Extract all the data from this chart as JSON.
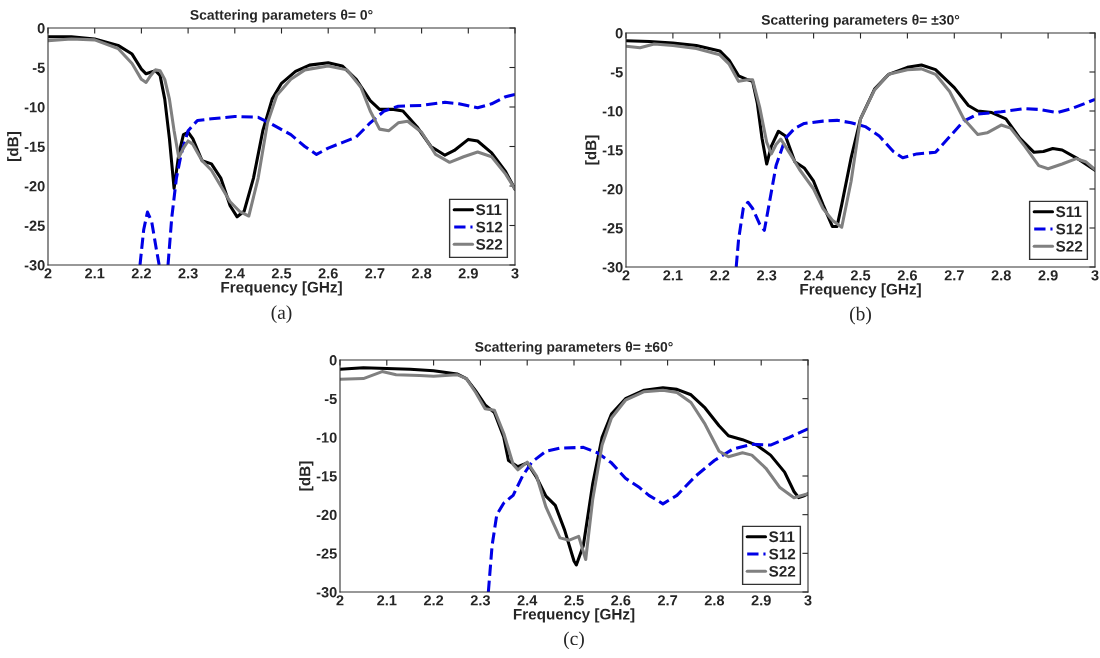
{
  "chart_data": [
    {
      "type": "line",
      "title": "Scattering parameters θ= 0°",
      "xlabel": "Frequency [GHz]",
      "ylabel": "[dB]",
      "annotations": [
        "(a)"
      ],
      "xlim": [
        2,
        3
      ],
      "ylim": [
        -30,
        0
      ],
      "xticks": [
        2,
        2.1,
        2.2,
        2.3,
        2.4,
        2.5,
        2.6,
        2.7,
        2.8,
        2.9,
        3
      ],
      "yticks": [
        -30,
        -25,
        -20,
        -15,
        -10,
        -5,
        0
      ],
      "grid": false,
      "legend": "bottom right",
      "series": [
        {
          "name": "S11",
          "color": "#000000",
          "line_style": "solid",
          "x": [
            2.0,
            2.05,
            2.1,
            2.15,
            2.18,
            2.2,
            2.21,
            2.23,
            2.24,
            2.25,
            2.26,
            2.27,
            2.28,
            2.29,
            2.3,
            2.31,
            2.33,
            2.35,
            2.37,
            2.39,
            2.405,
            2.42,
            2.44,
            2.46,
            2.48,
            2.5,
            2.53,
            2.56,
            2.6,
            2.63,
            2.66,
            2.69,
            2.71,
            2.74,
            2.76,
            2.79,
            2.82,
            2.85,
            2.87,
            2.9,
            2.92,
            2.95,
            2.98,
            3.0
          ],
          "values": [
            -1.1,
            -1.1,
            -1.4,
            -2.2,
            -3.3,
            -5.2,
            -5.8,
            -5.4,
            -6,
            -9,
            -14,
            -20.3,
            -16,
            -13.5,
            -13.2,
            -14,
            -16.8,
            -17.2,
            -19,
            -22.5,
            -23.9,
            -23.2,
            -19,
            -13,
            -9,
            -7,
            -5.5,
            -4.7,
            -4.4,
            -4.8,
            -6.5,
            -9.2,
            -10.3,
            -10.3,
            -10.5,
            -12.5,
            -15,
            -16.1,
            -15.5,
            -14.1,
            -14.3,
            -15.8,
            -18.2,
            -20.4
          ]
        },
        {
          "name": "S12",
          "color": "#0000e6",
          "line_style": "dashed",
          "x": [
            2.197,
            2.205,
            2.213,
            2.222,
            2.232,
            2.238,
            2.248,
            2.257,
            2.265,
            2.275,
            2.285,
            2.3,
            2.32,
            2.35,
            2.4,
            2.45,
            2.48,
            2.52,
            2.55,
            2.575,
            2.6,
            2.63,
            2.66,
            2.69,
            2.72,
            2.75,
            2.8,
            2.85,
            2.88,
            2.92,
            2.95,
            2.98,
            3.0
          ],
          "values": [
            -30,
            -25.5,
            -23.3,
            -24.5,
            -28,
            -30,
            null,
            -30,
            -24,
            -19,
            -16,
            -13,
            -11.7,
            -11.5,
            -11.2,
            -11.3,
            -12.2,
            -13.5,
            -15,
            -16,
            -15.2,
            -14.5,
            -13.8,
            -12,
            -10.5,
            -9.9,
            -9.8,
            -9.4,
            -9.6,
            -10.1,
            -9.6,
            -8.7,
            -8.4
          ]
        },
        {
          "name": "S22",
          "color": "#808080",
          "line_style": "solid",
          "x": [
            2.0,
            2.05,
            2.1,
            2.15,
            2.18,
            2.2,
            2.21,
            2.22,
            2.23,
            2.24,
            2.25,
            2.26,
            2.27,
            2.28,
            2.29,
            2.3,
            2.31,
            2.33,
            2.35,
            2.37,
            2.39,
            2.41,
            2.43,
            2.45,
            2.47,
            2.49,
            2.52,
            2.55,
            2.6,
            2.64,
            2.67,
            2.69,
            2.71,
            2.73,
            2.75,
            2.77,
            2.8,
            2.83,
            2.86,
            2.89,
            2.92,
            2.95,
            2.98,
            3.0
          ],
          "values": [
            -1.6,
            -1.4,
            -1.5,
            -2.6,
            -4.5,
            -6.5,
            -6.9,
            -6,
            -5.3,
            -5.4,
            -6.5,
            -9,
            -13,
            -16.4,
            -15.2,
            -14.3,
            -14.7,
            -16.8,
            -18,
            -20,
            -22,
            -23.2,
            -23.8,
            -19,
            -12,
            -8.5,
            -6.5,
            -5.3,
            -4.8,
            -5.3,
            -7.5,
            -10.5,
            -12.8,
            -13,
            -12,
            -11.8,
            -13.2,
            -16,
            -17,
            -16.3,
            -15.7,
            -16.3,
            -18.5,
            -20.4
          ]
        }
      ]
    },
    {
      "type": "line",
      "title": "Scattering parameters θ= ±30°",
      "xlabel": "Frequency [GHz]",
      "ylabel": "[dB]",
      "annotations": [
        "(b)"
      ],
      "xlim": [
        2,
        3
      ],
      "ylim": [
        -30,
        0
      ],
      "xticks": [
        2,
        2.1,
        2.2,
        2.3,
        2.4,
        2.5,
        2.6,
        2.7,
        2.8,
        2.9,
        3
      ],
      "yticks": [
        -30,
        -25,
        -20,
        -15,
        -10,
        -5,
        0
      ],
      "grid": false,
      "legend": "bottom right",
      "series": [
        {
          "name": "S11",
          "color": "#000000",
          "line_style": "solid",
          "x": [
            2.0,
            2.05,
            2.1,
            2.15,
            2.2,
            2.22,
            2.24,
            2.26,
            2.27,
            2.28,
            2.29,
            2.3,
            2.31,
            2.325,
            2.34,
            2.36,
            2.38,
            2.4,
            2.42,
            2.44,
            2.45,
            2.46,
            2.48,
            2.5,
            2.53,
            2.56,
            2.6,
            2.63,
            2.66,
            2.7,
            2.73,
            2.75,
            2.78,
            2.81,
            2.84,
            2.87,
            2.89,
            2.91,
            2.93,
            2.96,
            2.98,
            3.0
          ],
          "values": [
            -1,
            -1.1,
            -1.3,
            -1.6,
            -2.3,
            -3.5,
            -5.5,
            -6,
            -6.2,
            -9,
            -13.5,
            -16.8,
            -14.5,
            -12.6,
            -13.2,
            -16.5,
            -17.3,
            -19,
            -22,
            -24.8,
            -24.8,
            -22,
            -16,
            -11,
            -7.2,
            -5.3,
            -4.4,
            -4.1,
            -4.7,
            -7,
            -9.3,
            -10,
            -10.2,
            -11,
            -13.5,
            -15.3,
            -15.2,
            -14.8,
            -15,
            -16,
            -16.8,
            -17.6
          ]
        },
        {
          "name": "S12",
          "color": "#0000e6",
          "line_style": "dashed",
          "x": [
            2.235,
            2.24,
            2.25,
            2.26,
            2.27,
            2.285,
            2.295,
            2.305,
            2.32,
            2.34,
            2.36,
            2.38,
            2.42,
            2.45,
            2.48,
            2.51,
            2.54,
            2.57,
            2.59,
            2.62,
            2.66,
            2.69,
            2.72,
            2.75,
            2.8,
            2.85,
            2.88,
            2.92,
            2.95,
            2.98,
            3.0
          ],
          "values": [
            -30,
            -26.5,
            -22.5,
            -21.7,
            -22.5,
            -24.5,
            -25.3,
            -22,
            -17,
            -13.5,
            -12.2,
            -11.6,
            -11.3,
            -11.2,
            -11.5,
            -12,
            -13.2,
            -15.2,
            -16,
            -15.5,
            -15.3,
            -13.3,
            -11.3,
            -10.4,
            -10.1,
            -9.7,
            -9.8,
            -10.2,
            -9.7,
            -9,
            -8.5
          ]
        },
        {
          "name": "S22",
          "color": "#808080",
          "line_style": "solid",
          "x": [
            2.0,
            2.03,
            2.06,
            2.1,
            2.15,
            2.2,
            2.22,
            2.24,
            2.26,
            2.27,
            2.285,
            2.3,
            2.31,
            2.32,
            2.33,
            2.35,
            2.37,
            2.4,
            2.42,
            2.44,
            2.46,
            2.48,
            2.5,
            2.53,
            2.56,
            2.6,
            2.63,
            2.66,
            2.69,
            2.72,
            2.75,
            2.77,
            2.8,
            2.82,
            2.85,
            2.88,
            2.9,
            2.93,
            2.96,
            2.98,
            3.0
          ],
          "values": [
            -1.7,
            -1.9,
            -1.4,
            -1.6,
            -2,
            -2.8,
            -4,
            -6.2,
            -6,
            -6,
            -9.5,
            -14,
            -15.5,
            -14.3,
            -13.6,
            -15.5,
            -17.5,
            -20,
            -22.5,
            -24,
            -24.9,
            -19,
            -11,
            -7.3,
            -5.3,
            -4.7,
            -4.6,
            -5.3,
            -7.5,
            -11,
            -13,
            -12.8,
            -11.8,
            -12.2,
            -14.5,
            -17,
            -17.4,
            -16.8,
            -16.1,
            -16.5,
            -17.5
          ]
        }
      ]
    },
    {
      "type": "line",
      "title": "Scattering parameters θ= ±60°",
      "xlabel": "Frequency [GHz]",
      "ylabel": "[dB]",
      "annotations": [
        "(c)"
      ],
      "xlim": [
        2,
        3
      ],
      "ylim": [
        -30,
        0
      ],
      "xticks": [
        2,
        2.1,
        2.2,
        2.3,
        2.4,
        2.5,
        2.6,
        2.7,
        2.8,
        2.9,
        3
      ],
      "yticks": [
        -30,
        -25,
        -20,
        -15,
        -10,
        -5,
        0
      ],
      "grid": false,
      "legend": "bottom right",
      "series": [
        {
          "name": "S11",
          "color": "#000000",
          "line_style": "solid",
          "x": [
            2.0,
            2.05,
            2.1,
            2.15,
            2.2,
            2.25,
            2.27,
            2.29,
            2.31,
            2.33,
            2.35,
            2.36,
            2.38,
            2.4,
            2.42,
            2.44,
            2.46,
            2.48,
            2.5,
            2.505,
            2.52,
            2.54,
            2.56,
            2.58,
            2.61,
            2.65,
            2.69,
            2.72,
            2.75,
            2.78,
            2.81,
            2.83,
            2.86,
            2.89,
            2.92,
            2.95,
            2.97,
            2.98,
            2.99,
            3.0
          ],
          "values": [
            -1.2,
            -1,
            -1.1,
            -1.2,
            -1.4,
            -1.8,
            -2.4,
            -4,
            -5.8,
            -6.8,
            -10,
            -13,
            -13.8,
            -13.3,
            -15.2,
            -17.6,
            -18.8,
            -22,
            -26,
            -26.5,
            -24,
            -16,
            -10,
            -7,
            -5,
            -3.9,
            -3.6,
            -3.8,
            -4.5,
            -6.2,
            -8.5,
            -9.8,
            -10.3,
            -11,
            -12.3,
            -14.5,
            -17,
            -17.8,
            -17.6,
            -17.3
          ]
        },
        {
          "name": "S12",
          "color": "#0000e6",
          "line_style": "dashed",
          "x": [
            2.317,
            2.325,
            2.335,
            2.35,
            2.37,
            2.39,
            2.41,
            2.44,
            2.47,
            2.52,
            2.55,
            2.58,
            2.61,
            2.64,
            2.66,
            2.69,
            2.72,
            2.76,
            2.8,
            2.84,
            2.88,
            2.92,
            2.96,
            3.0
          ],
          "values": [
            -30,
            -24,
            -20,
            -18.5,
            -17.5,
            -15,
            -13.2,
            -11.8,
            -11.4,
            -11.3,
            -12,
            -13.3,
            -15.3,
            -16.5,
            -17.5,
            -18.6,
            -17.5,
            -15,
            -13,
            -11.5,
            -10.9,
            -11,
            -10,
            -8.9
          ]
        },
        {
          "name": "S22",
          "color": "#808080",
          "line_style": "solid",
          "x": [
            2.0,
            2.05,
            2.09,
            2.12,
            2.17,
            2.2,
            2.25,
            2.27,
            2.29,
            2.31,
            2.33,
            2.35,
            2.37,
            2.38,
            2.4,
            2.42,
            2.44,
            2.47,
            2.49,
            2.51,
            2.525,
            2.54,
            2.56,
            2.58,
            2.61,
            2.65,
            2.69,
            2.72,
            2.75,
            2.78,
            2.81,
            2.83,
            2.86,
            2.88,
            2.91,
            2.94,
            2.97,
            3.0
          ],
          "values": [
            -2.5,
            -2.4,
            -1.5,
            -1.9,
            -2,
            -2.1,
            -1.9,
            -2.4,
            -4.2,
            -6.3,
            -6.5,
            -9.5,
            -13.5,
            -14.2,
            -13.2,
            -15,
            -19,
            -23,
            -23.3,
            -22.8,
            -25.8,
            -18,
            -11,
            -7.5,
            -5.2,
            -4.1,
            -3.9,
            -4.2,
            -5.5,
            -8.3,
            -11.8,
            -12.5,
            -12,
            -12.3,
            -14,
            -16.5,
            -17.8,
            -17.3
          ]
        }
      ]
    }
  ]
}
